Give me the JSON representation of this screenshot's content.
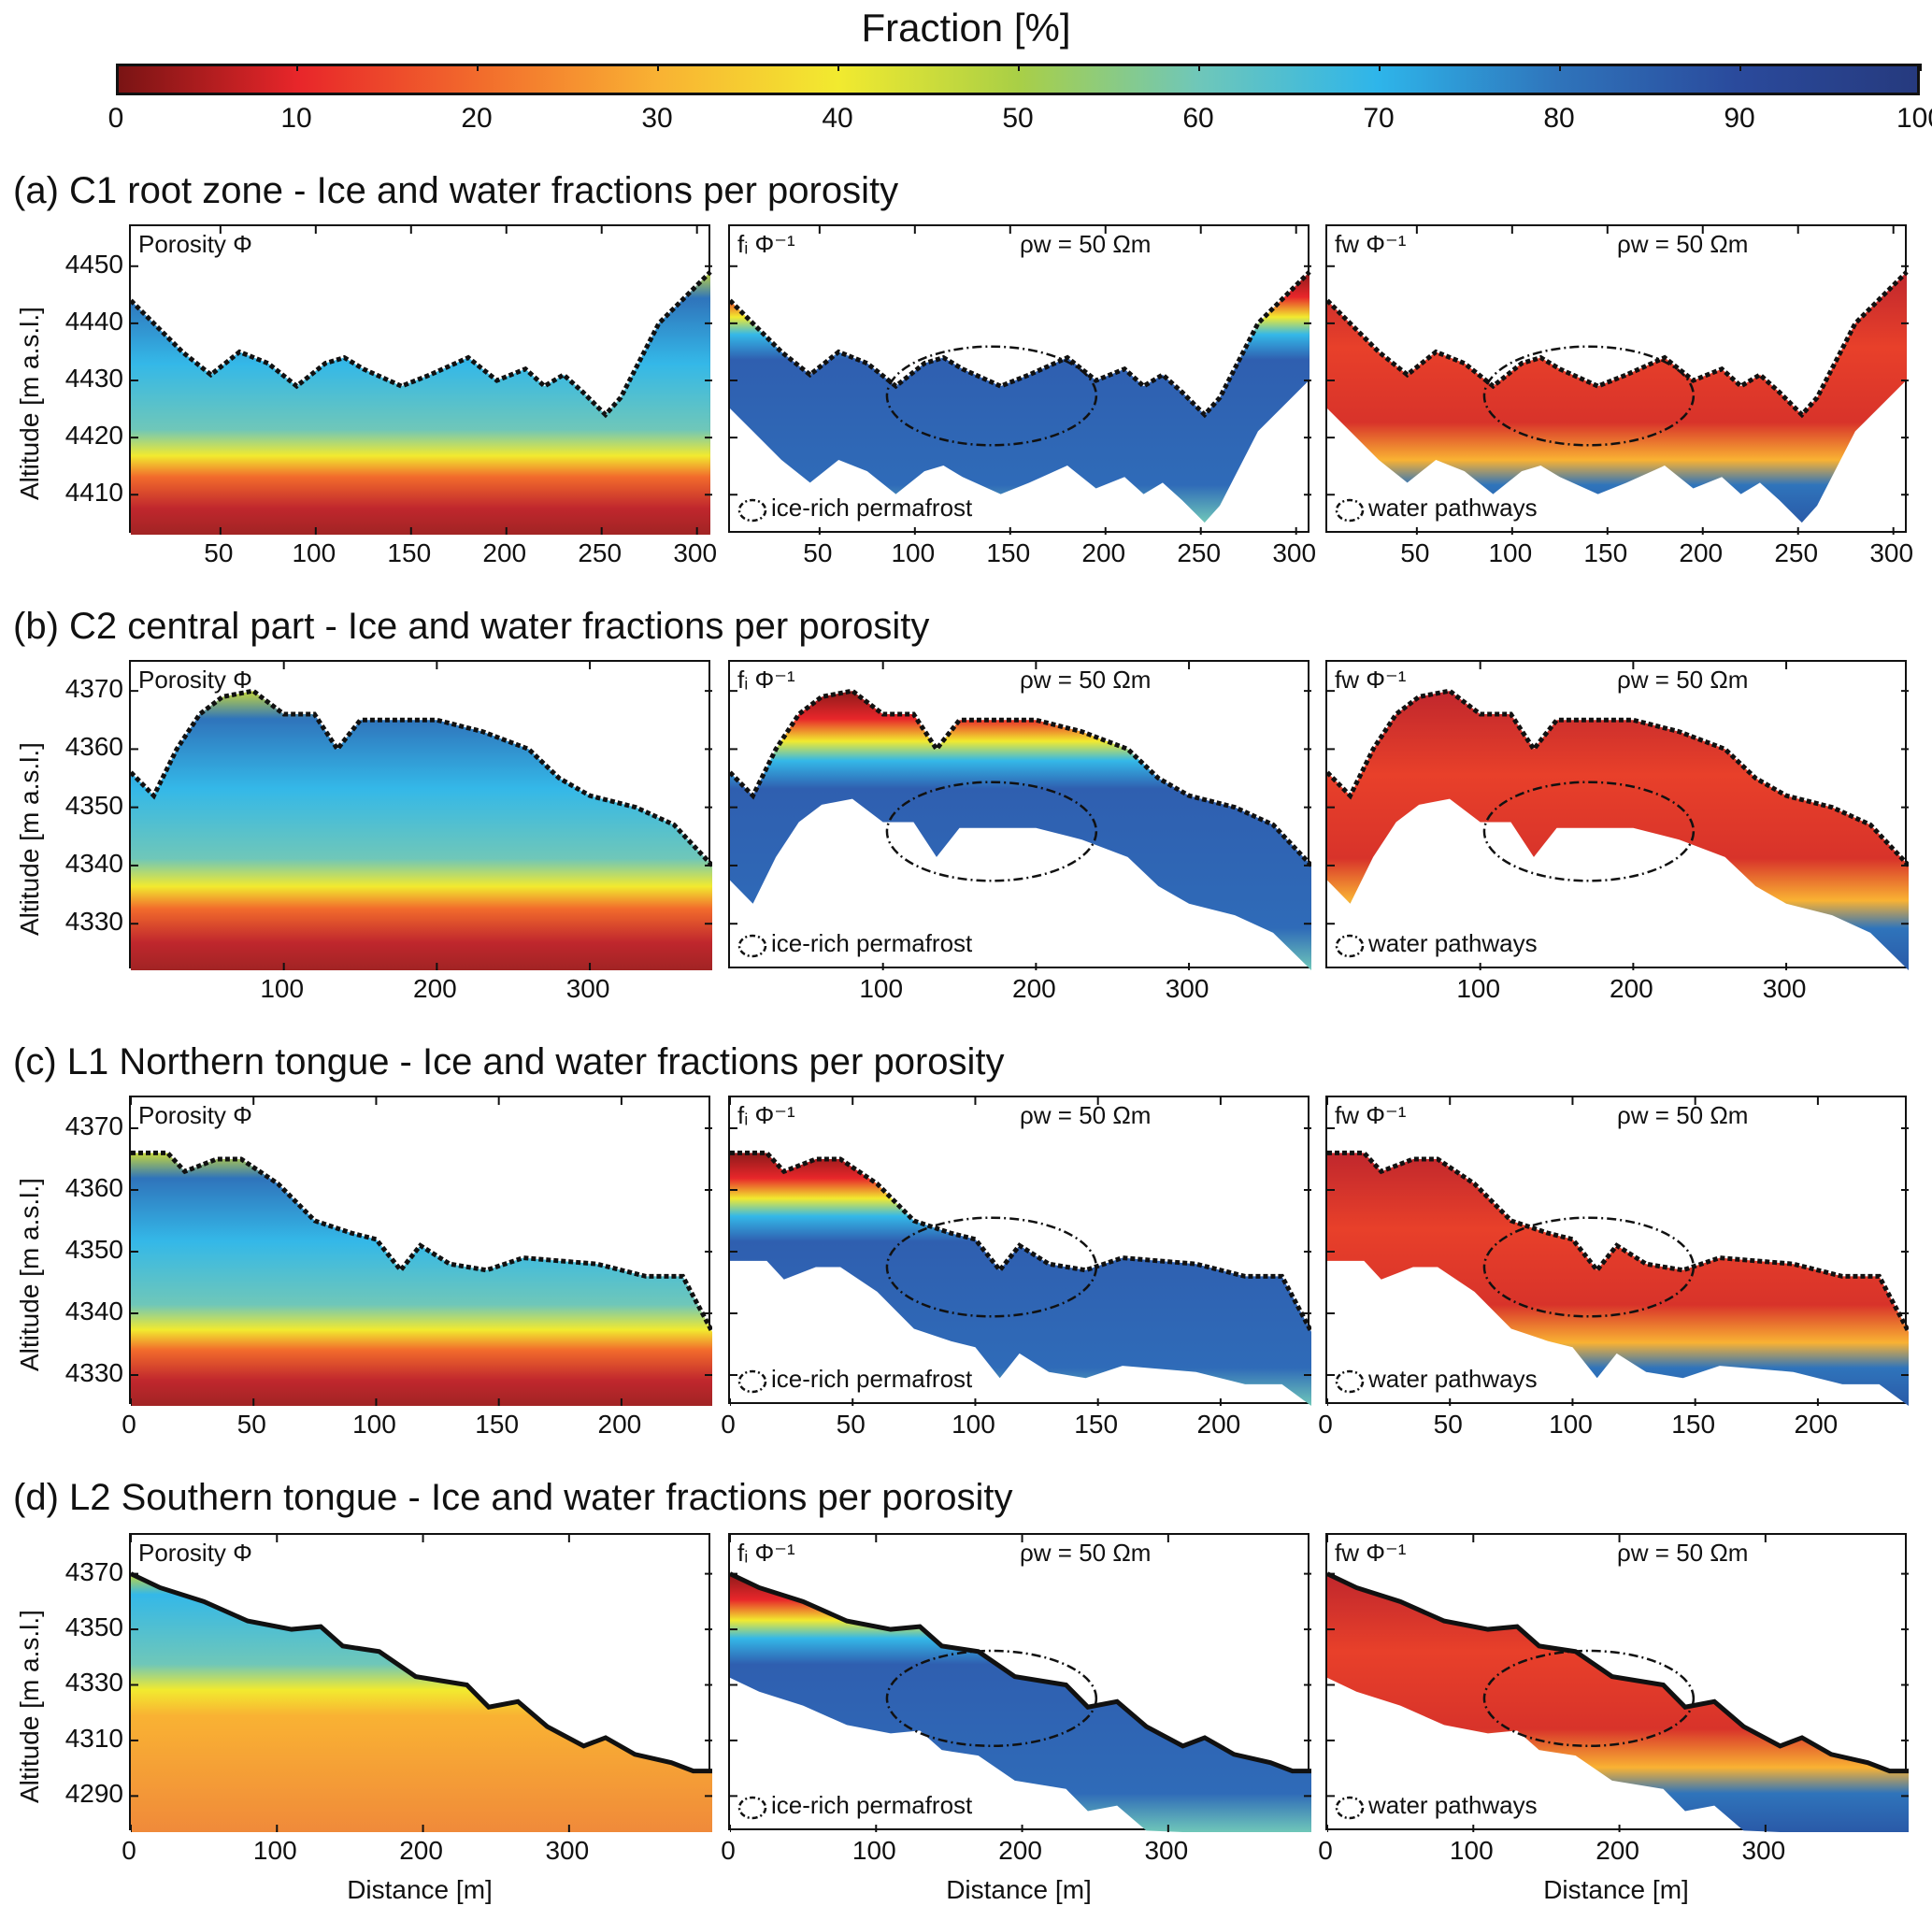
{
  "chart_data": {
    "type": "heatmap",
    "colorbar": {
      "title": "Fraction [%]",
      "range": [
        0,
        100
      ],
      "ticks": [
        0,
        10,
        20,
        30,
        40,
        50,
        60,
        70,
        80,
        90,
        100
      ],
      "colormap": "jet-like",
      "stops": [
        "#7a1414",
        "#e8262a",
        "#f26b2c",
        "#f9b233",
        "#f2ea2f",
        "#a9cf46",
        "#6fc7b9",
        "#2eb5ea",
        "#2f74bb",
        "#2a4a9c",
        "#263a7e"
      ]
    },
    "rows": [
      {
        "title": "(a) C1 root zone - Ice and water fractions per porosity",
        "ylabel": "Altitude [m a.s.l.]",
        "xlabel": "",
        "yticks": [
          4410,
          4420,
          4430,
          4440,
          4450
        ],
        "ylim": [
          4403,
          4457
        ],
        "xticks": [
          50,
          100,
          150,
          200,
          250,
          300
        ],
        "xlim": [
          3,
          308
        ],
        "surface": [
          [
            3,
            4444
          ],
          [
            15,
            4440
          ],
          [
            30,
            4435
          ],
          [
            45,
            4431
          ],
          [
            60,
            4435
          ],
          [
            75,
            4433
          ],
          [
            90,
            4429
          ],
          [
            105,
            4433
          ],
          [
            115,
            4434
          ],
          [
            125,
            4432
          ],
          [
            145,
            4429
          ],
          [
            160,
            4431
          ],
          [
            180,
            4434
          ],
          [
            195,
            4430
          ],
          [
            210,
            4432
          ],
          [
            220,
            4429
          ],
          [
            230,
            4431
          ],
          [
            240,
            4428
          ],
          [
            252,
            4424
          ],
          [
            260,
            4427
          ],
          [
            280,
            4440
          ],
          [
            295,
            4445
          ],
          [
            307,
            4449
          ]
        ],
        "panels": [
          {
            "label": "Porosity Φ",
            "rho": "",
            "legend": "",
            "kind": "porosity"
          },
          {
            "label": "fᵢ Φ⁻¹",
            "rho": "ρw = 50 Ωm",
            "legend": "ice-rich permafrost",
            "kind": "ice"
          },
          {
            "label": "fw Φ⁻¹",
            "rho": "ρw = 50 Ωm",
            "legend": "water pathways",
            "kind": "water"
          }
        ]
      },
      {
        "title": "(b) C2 central part - Ice and water fractions per porosity",
        "ylabel": "Altitude [m a.s.l.]",
        "xlabel": "",
        "yticks": [
          4330,
          4340,
          4350,
          4360,
          4370
        ],
        "ylim": [
          4322,
          4375
        ],
        "xticks": [
          100,
          200,
          300
        ],
        "xlim": [
          0,
          380
        ],
        "surface": [
          [
            0,
            4356
          ],
          [
            15,
            4352
          ],
          [
            30,
            4360
          ],
          [
            45,
            4366
          ],
          [
            60,
            4369
          ],
          [
            80,
            4370
          ],
          [
            100,
            4366
          ],
          [
            120,
            4366
          ],
          [
            135,
            4360
          ],
          [
            150,
            4365
          ],
          [
            200,
            4365
          ],
          [
            230,
            4363
          ],
          [
            260,
            4360
          ],
          [
            280,
            4355
          ],
          [
            300,
            4352
          ],
          [
            330,
            4350
          ],
          [
            355,
            4347
          ],
          [
            380,
            4340
          ]
        ],
        "panels": [
          {
            "label": "Porosity Φ",
            "rho": "",
            "legend": "",
            "kind": "porosity"
          },
          {
            "label": "fᵢ Φ⁻¹",
            "rho": "ρw = 50 Ωm",
            "legend": "ice-rich permafrost",
            "kind": "ice"
          },
          {
            "label": "fw Φ⁻¹",
            "rho": "ρw = 50 Ωm",
            "legend": "water pathways",
            "kind": "water"
          }
        ]
      },
      {
        "title": "(c) L1 Northern tongue - Ice and water fractions per porosity",
        "ylabel": "Altitude [m a.s.l.]",
        "xlabel": "",
        "yticks": [
          4330,
          4340,
          4350,
          4360,
          4370
        ],
        "ylim": [
          4325,
          4375
        ],
        "xticks": [
          0,
          50,
          100,
          150,
          200
        ],
        "xlim": [
          0,
          237
        ],
        "surface": [
          [
            0,
            4366
          ],
          [
            15,
            4366
          ],
          [
            22,
            4363
          ],
          [
            35,
            4365
          ],
          [
            45,
            4365
          ],
          [
            60,
            4361
          ],
          [
            75,
            4355
          ],
          [
            90,
            4353
          ],
          [
            100,
            4352
          ],
          [
            110,
            4347
          ],
          [
            118,
            4351
          ],
          [
            130,
            4348
          ],
          [
            145,
            4347
          ],
          [
            160,
            4349
          ],
          [
            190,
            4348
          ],
          [
            210,
            4346
          ],
          [
            225,
            4346
          ],
          [
            237,
            4337
          ]
        ],
        "panels": [
          {
            "label": "Porosity Φ",
            "rho": "",
            "legend": "",
            "kind": "porosity"
          },
          {
            "label": "fᵢ Φ⁻¹",
            "rho": "ρw = 50 Ωm",
            "legend": "ice-rich permafrost",
            "kind": "ice"
          },
          {
            "label": "fw Φ⁻¹",
            "rho": "ρw = 50 Ωm",
            "legend": "water pathways",
            "kind": "water"
          }
        ]
      },
      {
        "title": "(d) L2 Southern tongue - Ice and water fractions per porosity",
        "ylabel": "Altitude [m a.s.l.]",
        "xlabel": "Distance [m]",
        "yticks": [
          4290,
          4310,
          4330,
          4350,
          4370
        ],
        "ylim": [
          4277,
          4384
        ],
        "xticks": [
          0,
          100,
          200,
          300
        ],
        "xlim": [
          0,
          398
        ],
        "surface": [
          [
            0,
            4370
          ],
          [
            20,
            4365
          ],
          [
            50,
            4360
          ],
          [
            80,
            4353
          ],
          [
            110,
            4350
          ],
          [
            130,
            4351
          ],
          [
            145,
            4344
          ],
          [
            170,
            4342
          ],
          [
            195,
            4333
          ],
          [
            230,
            4330
          ],
          [
            245,
            4322
          ],
          [
            265,
            4324
          ],
          [
            285,
            4315
          ],
          [
            310,
            4308
          ],
          [
            325,
            4311
          ],
          [
            345,
            4305
          ],
          [
            370,
            4302
          ],
          [
            385,
            4299
          ],
          [
            398,
            4299
          ]
        ],
        "panels": [
          {
            "label": "Porosity Φ",
            "rho": "",
            "legend": "",
            "kind": "porosity"
          },
          {
            "label": "fᵢ Φ⁻¹",
            "rho": "ρw = 50 Ωm",
            "legend": "ice-rich permafrost",
            "kind": "ice"
          },
          {
            "label": "fw Φ⁻¹",
            "rho": "ρw = 50 Ωm",
            "legend": "water pathways",
            "kind": "water"
          }
        ]
      }
    ]
  }
}
